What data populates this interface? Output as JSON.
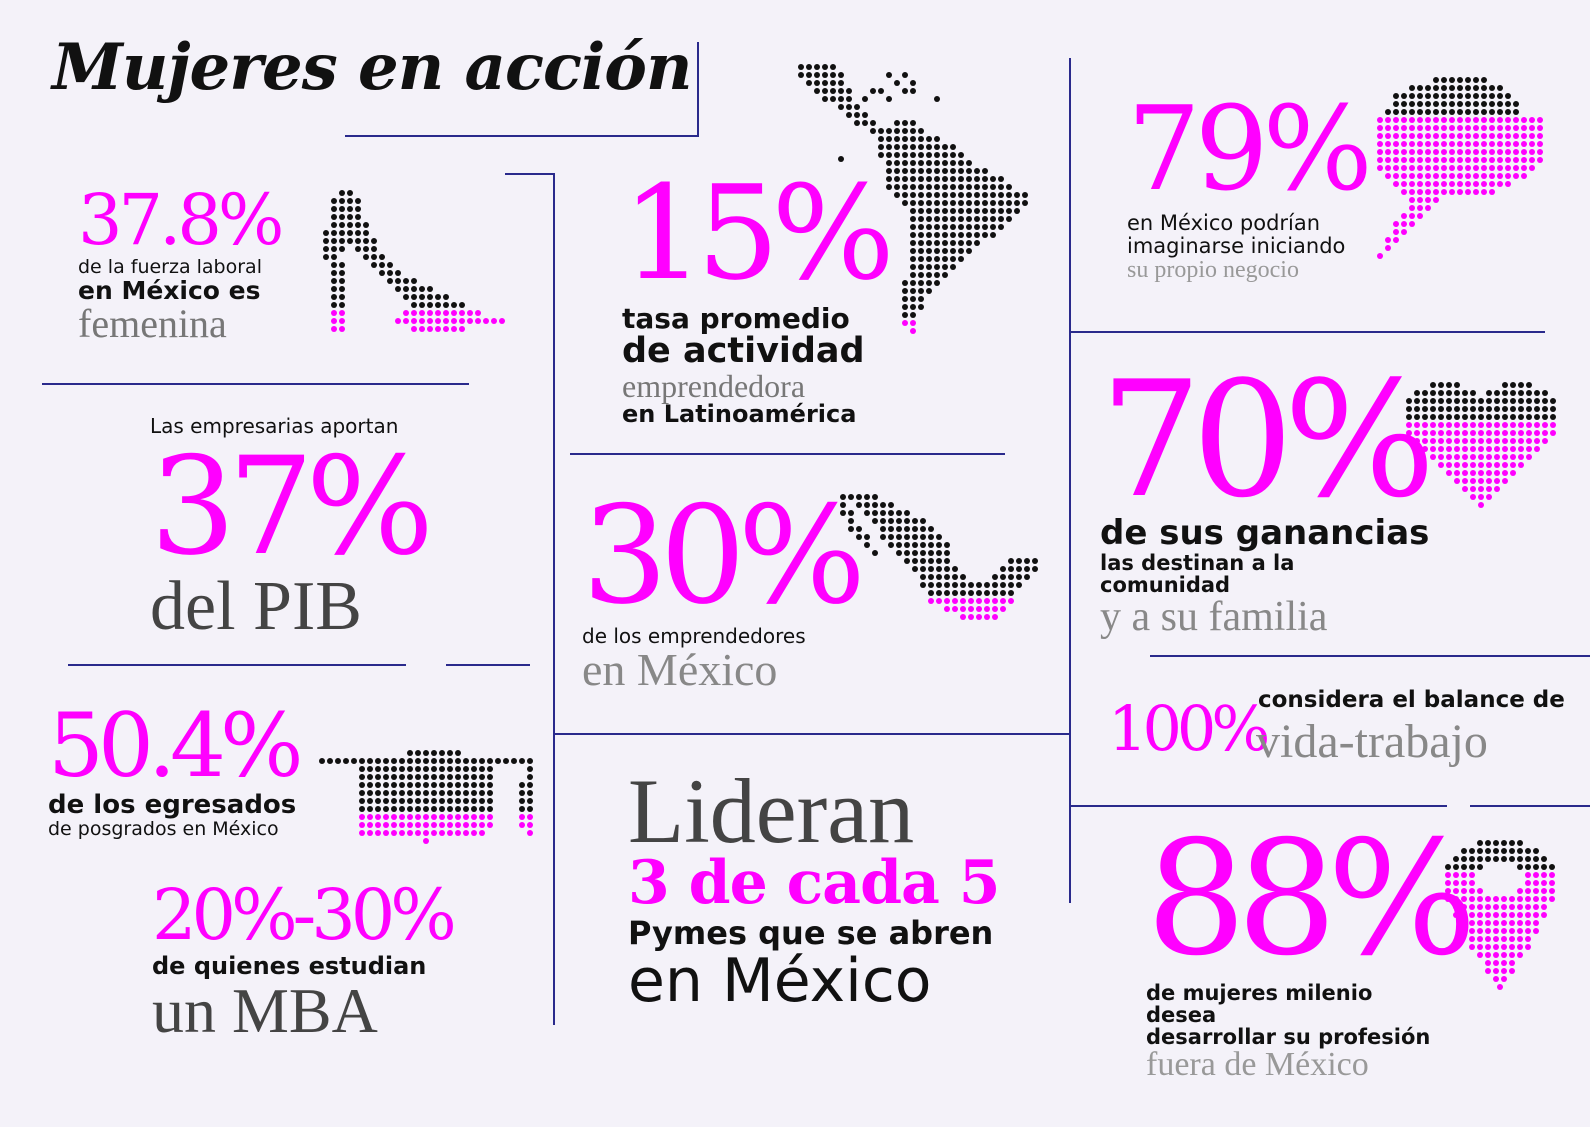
{
  "title": "Mujeres en acción",
  "stat_378": {
    "value": "37.8%",
    "line1": "de la fuerza laboral",
    "line2": "en México es",
    "line3": "femenina"
  },
  "stat_15": {
    "value": "15%",
    "line1": "tasa promedio",
    "line2": "de actividad",
    "line3": "emprendedora",
    "line4": "en Latinoamérica"
  },
  "stat_79": {
    "value": "79%",
    "line1": "en México podrían",
    "line2": "imaginarse iniciando",
    "line3": "su propio negocio"
  },
  "stat_37": {
    "pre": "Las empresarias aportan",
    "value": "37%",
    "post": "del PIB"
  },
  "stat_30": {
    "value": "30%",
    "line1": "de los emprendedores",
    "line2": "en México"
  },
  "stat_70": {
    "value": "70%",
    "line1": "de sus ganancias",
    "line2": "las destinan a la comunidad",
    "line3": "y a su familia"
  },
  "stat_100": {
    "value": "100%",
    "line1": "considera el balance de",
    "line2": "vida-trabajo"
  },
  "stat_504": {
    "value": "50.4%",
    "line1": "de los egresados",
    "line2": "de posgrados en México"
  },
  "stat_2030": {
    "value": "20%-30%",
    "line1": "de quienes estudian",
    "line2": "un MBA"
  },
  "lideran": {
    "line1": "Lideran",
    "line2": "3 de cada 5",
    "line3": "Pymes que se abren",
    "line4": "en México"
  },
  "stat_88": {
    "value": "88%",
    "line1": "de mujeres milenio desea",
    "line2": "desarrollar su profesión",
    "line3": "fuera de México"
  },
  "colors": {
    "accent": "#ff00ff",
    "line": "#2a2a8c",
    "dots": "#111111",
    "background": "#f4f2f9"
  },
  "icons": [
    "high-heel-icon",
    "latin-america-map-icon",
    "brain-icon",
    "heart-icon",
    "mexico-map-icon",
    "graduation-cap-icon",
    "location-pin-icon"
  ]
}
